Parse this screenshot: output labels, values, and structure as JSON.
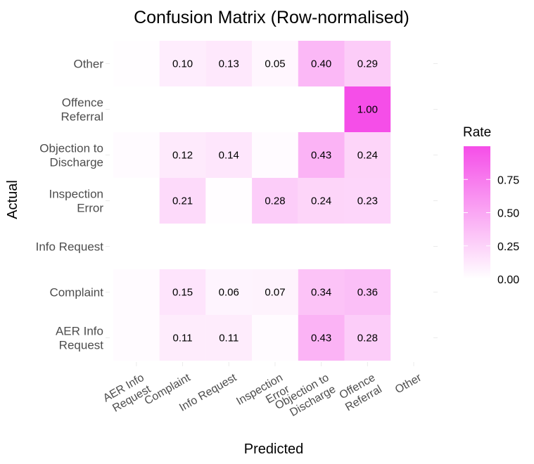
{
  "chart_data": {
    "type": "heatmap",
    "title": "Confusion Matrix (Row-normalised)",
    "xlabel": "Predicted",
    "ylabel": "Actual",
    "x_categories": [
      [
        "AER Info",
        "Request"
      ],
      [
        "Complaint"
      ],
      [
        "Info Request"
      ],
      [
        "Inspection",
        "Error"
      ],
      [
        "Objection to",
        "Discharge"
      ],
      [
        "Offence",
        "Referral"
      ],
      [
        "Other"
      ]
    ],
    "y_categories": [
      [
        "Other"
      ],
      [
        "Offence",
        "Referral"
      ],
      [
        "Objection to",
        "Discharge"
      ],
      [
        "Inspection",
        "Error"
      ],
      [
        "Info Request"
      ],
      [
        "Complaint"
      ],
      [
        "AER Info",
        "Request"
      ]
    ],
    "cells": [
      {
        "row": 0,
        "col": 0,
        "value": 0.01,
        "label": ""
      },
      {
        "row": 0,
        "col": 1,
        "value": 0.1,
        "label": "0.10"
      },
      {
        "row": 0,
        "col": 2,
        "value": 0.13,
        "label": "0.13"
      },
      {
        "row": 0,
        "col": 3,
        "value": 0.05,
        "label": "0.05"
      },
      {
        "row": 0,
        "col": 4,
        "value": 0.4,
        "label": "0.40"
      },
      {
        "row": 0,
        "col": 5,
        "value": 0.29,
        "label": "0.29"
      },
      {
        "row": 1,
        "col": 5,
        "value": 1.0,
        "label": "1.00"
      },
      {
        "row": 2,
        "col": 0,
        "value": 0.02,
        "label": ""
      },
      {
        "row": 2,
        "col": 1,
        "value": 0.12,
        "label": "0.12"
      },
      {
        "row": 2,
        "col": 2,
        "value": 0.14,
        "label": "0.14"
      },
      {
        "row": 2,
        "col": 3,
        "value": 0.02,
        "label": ""
      },
      {
        "row": 2,
        "col": 4,
        "value": 0.43,
        "label": "0.43"
      },
      {
        "row": 2,
        "col": 5,
        "value": 0.24,
        "label": "0.24"
      },
      {
        "row": 3,
        "col": 1,
        "value": 0.21,
        "label": "0.21"
      },
      {
        "row": 3,
        "col": 2,
        "value": 0.01,
        "label": ""
      },
      {
        "row": 3,
        "col": 3,
        "value": 0.28,
        "label": "0.28"
      },
      {
        "row": 3,
        "col": 4,
        "value": 0.24,
        "label": "0.24"
      },
      {
        "row": 3,
        "col": 5,
        "value": 0.23,
        "label": "0.23"
      },
      {
        "row": 5,
        "col": 0,
        "value": 0.02,
        "label": ""
      },
      {
        "row": 5,
        "col": 1,
        "value": 0.15,
        "label": "0.15"
      },
      {
        "row": 5,
        "col": 2,
        "value": 0.06,
        "label": "0.06"
      },
      {
        "row": 5,
        "col": 3,
        "value": 0.07,
        "label": "0.07"
      },
      {
        "row": 5,
        "col": 4,
        "value": 0.34,
        "label": "0.34"
      },
      {
        "row": 5,
        "col": 5,
        "value": 0.36,
        "label": "0.36"
      },
      {
        "row": 6,
        "col": 0,
        "value": 0.02,
        "label": ""
      },
      {
        "row": 6,
        "col": 1,
        "value": 0.11,
        "label": "0.11"
      },
      {
        "row": 6,
        "col": 2,
        "value": 0.11,
        "label": "0.11"
      },
      {
        "row": 6,
        "col": 3,
        "value": 0.02,
        "label": ""
      },
      {
        "row": 6,
        "col": 4,
        "value": 0.43,
        "label": "0.43"
      },
      {
        "row": 6,
        "col": 5,
        "value": 0.28,
        "label": "0.28"
      }
    ],
    "color_scale": {
      "low": "#ffffff",
      "high": "#f54ee8",
      "limits": [
        0,
        1
      ]
    },
    "legend": {
      "title": "Rate",
      "ticks": [
        0.0,
        0.25,
        0.5,
        0.75
      ],
      "tick_labels": [
        "0.00",
        "0.25",
        "0.50",
        "0.75"
      ],
      "position": "right"
    },
    "grid": false
  }
}
